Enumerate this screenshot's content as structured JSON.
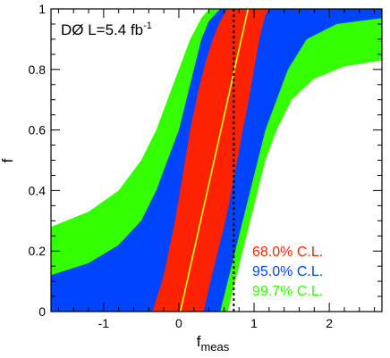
{
  "chart_data": {
    "type": "area",
    "title": "",
    "experiment_label": "DØ L=5.4 fb",
    "experiment_label_sup": "-1",
    "xlabel": "f",
    "xlabel_sub": "meas",
    "ylabel": "f",
    "xlim": [
      -1.7,
      2.7
    ],
    "ylim": [
      0,
      1
    ],
    "xticks": [
      -1,
      0,
      1,
      2
    ],
    "yticks": [
      0,
      0.2,
      0.4,
      0.6,
      0.8,
      1
    ],
    "ytick_labels": [
      "0",
      "0.2",
      "0.4",
      "0.6",
      "0.8",
      "1"
    ],
    "legend_position": "bottom-right",
    "measured_value": 0.73,
    "center_line": {
      "name": "",
      "color": "#ffff00",
      "points": [
        [
          0.02,
          0.0
        ],
        [
          0.92,
          1.0
        ]
      ]
    },
    "series": [
      {
        "name": "99.7% C.L.",
        "color": "#33ff00",
        "upper": [
          [
            -1.7,
            0.28
          ],
          [
            -1.2,
            0.33
          ],
          [
            -0.8,
            0.4
          ],
          [
            -0.5,
            0.5
          ],
          [
            -0.3,
            0.6
          ],
          [
            -0.15,
            0.7
          ],
          [
            0.0,
            0.8
          ],
          [
            0.15,
            0.9
          ],
          [
            0.3,
            0.97
          ],
          [
            0.4,
            1.0
          ]
        ],
        "lower": [
          [
            0.65,
            0.0
          ],
          [
            0.75,
            0.1
          ],
          [
            0.85,
            0.2
          ],
          [
            0.95,
            0.3
          ],
          [
            1.05,
            0.4
          ],
          [
            1.15,
            0.5
          ],
          [
            1.3,
            0.6
          ],
          [
            1.5,
            0.7
          ],
          [
            1.8,
            0.77
          ],
          [
            2.2,
            0.81
          ],
          [
            2.7,
            0.83
          ]
        ]
      },
      {
        "name": "95.0% C.L.",
        "color": "#0044ff",
        "upper": [
          [
            -1.7,
            0.12
          ],
          [
            -1.2,
            0.16
          ],
          [
            -0.8,
            0.22
          ],
          [
            -0.5,
            0.3
          ],
          [
            -0.3,
            0.4
          ],
          [
            -0.15,
            0.5
          ],
          [
            0.0,
            0.6
          ],
          [
            0.1,
            0.7
          ],
          [
            0.2,
            0.8
          ],
          [
            0.3,
            0.9
          ],
          [
            0.4,
            0.96
          ],
          [
            0.55,
            1.0
          ]
        ],
        "lower": [
          [
            0.55,
            0.0
          ],
          [
            0.65,
            0.1
          ],
          [
            0.75,
            0.2
          ],
          [
            0.85,
            0.3
          ],
          [
            0.95,
            0.4
          ],
          [
            1.05,
            0.5
          ],
          [
            1.15,
            0.6
          ],
          [
            1.3,
            0.7
          ],
          [
            1.45,
            0.8
          ],
          [
            1.7,
            0.9
          ],
          [
            2.1,
            0.95
          ],
          [
            2.7,
            0.97
          ]
        ]
      },
      {
        "name": "68.0% C.L.",
        "color": "#ff2200",
        "upper": [
          [
            -0.35,
            0.0
          ],
          [
            -0.2,
            0.12
          ],
          [
            -0.05,
            0.3
          ],
          [
            0.05,
            0.45
          ],
          [
            0.15,
            0.6
          ],
          [
            0.25,
            0.72
          ],
          [
            0.35,
            0.82
          ],
          [
            0.45,
            0.9
          ],
          [
            0.55,
            0.96
          ],
          [
            0.65,
            1.0
          ]
        ],
        "lower": [
          [
            0.33,
            0.0
          ],
          [
            0.42,
            0.1
          ],
          [
            0.52,
            0.2
          ],
          [
            0.62,
            0.3
          ],
          [
            0.7,
            0.4
          ],
          [
            0.78,
            0.5
          ],
          [
            0.85,
            0.6
          ],
          [
            0.93,
            0.7
          ],
          [
            1.0,
            0.8
          ],
          [
            1.07,
            0.9
          ],
          [
            1.15,
            0.98
          ],
          [
            1.2,
            1.0
          ]
        ]
      }
    ]
  }
}
